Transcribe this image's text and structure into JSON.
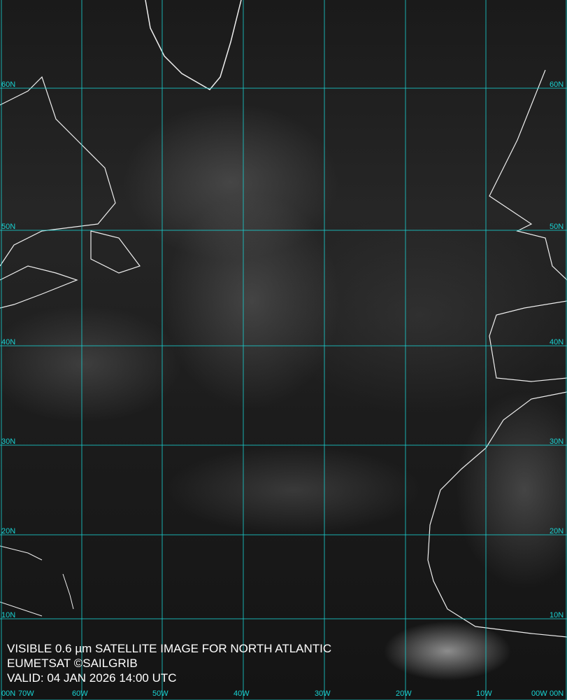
{
  "caption": {
    "line1": "VISIBLE 0.6 µm SATELLITE IMAGE FOR NORTH ATLANTIC",
    "line2": "EUMETSAT ©SAILGRIB",
    "line3": "VALID:  04 JAN 2026 14:00 UTC"
  },
  "grid_color": "#19d3d3",
  "lat_labels": [
    "60N",
    "50N",
    "40N",
    "30N",
    "20N",
    "10N",
    "00N"
  ],
  "lon_labels": [
    "70W",
    "60W",
    "50W",
    "40W",
    "30W",
    "20W",
    "10W",
    "00W"
  ]
}
